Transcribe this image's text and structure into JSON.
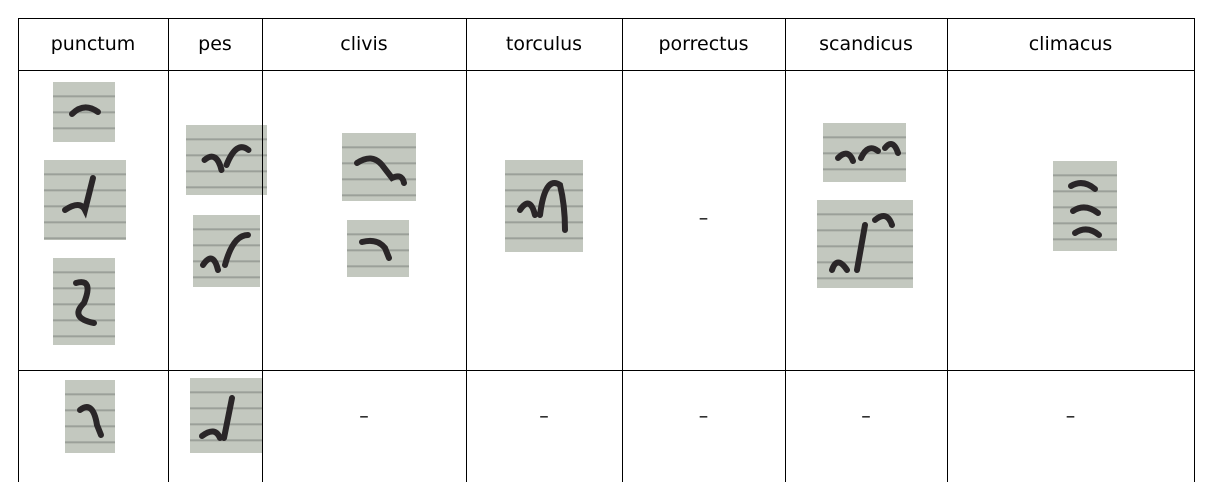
{
  "table": {
    "headers": [
      "punctum",
      "pes",
      "clivis",
      "torculus",
      "porrectus",
      "scandicus",
      "climacus"
    ],
    "rows": [
      [
        null,
        null,
        null,
        null,
        "–",
        null,
        null
      ],
      [
        null,
        null,
        "–",
        "–",
        "–",
        "–",
        "–"
      ]
    ]
  }
}
